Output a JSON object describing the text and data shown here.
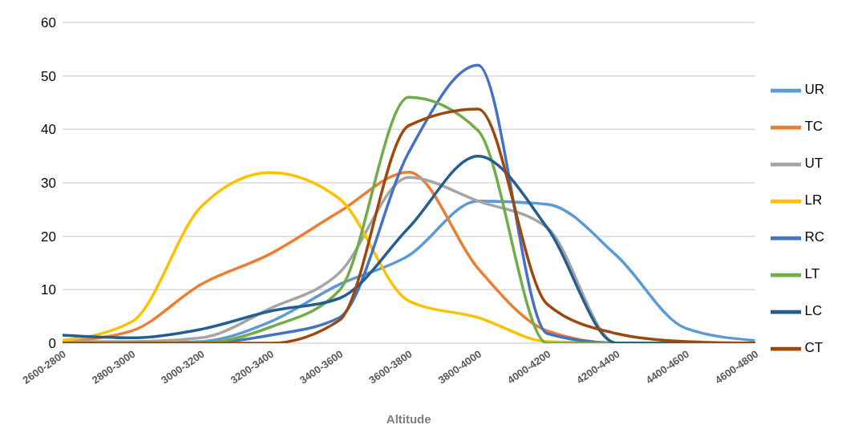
{
  "chart_data": {
    "type": "line",
    "xlabel": "Altitude",
    "categories": [
      "2600-2800",
      "2800-3000",
      "3000-3200",
      "3200-3400",
      "3400-3600",
      "3600-3800",
      "3800-4000",
      "4000-4200",
      "4200-4400",
      "4400-4600",
      "4600-4800"
    ],
    "series": [
      {
        "name": "UR",
        "color": "#5b9bd5",
        "values": [
          0,
          0,
          0.3,
          4,
          11,
          16.4,
          26.6,
          26,
          16.4,
          2.8,
          0.5
        ]
      },
      {
        "name": "TC",
        "color": "#ed7d31",
        "values": [
          0.3,
          2.3,
          11,
          16.7,
          24.6,
          32,
          14,
          2.3,
          0,
          0,
          0
        ]
      },
      {
        "name": "UT",
        "color": "#a5a5a5",
        "values": [
          0.3,
          0.3,
          1,
          6.5,
          13.2,
          31,
          26.6,
          21.6,
          0,
          0,
          0
        ]
      },
      {
        "name": "LR",
        "color": "#ffc000",
        "values": [
          0.5,
          4,
          25.5,
          31.9,
          27,
          7.9,
          4.8,
          0.3,
          0,
          null,
          null
        ]
      },
      {
        "name": "RC",
        "color": "#4472c4",
        "values": [
          0,
          0,
          0,
          1.5,
          4.8,
          35.7,
          52,
          1.8,
          0,
          0,
          0
        ]
      },
      {
        "name": "LT",
        "color": "#70ad47",
        "values": [
          0,
          0,
          0,
          3,
          9.9,
          46,
          39.8,
          0,
          0,
          0,
          0
        ]
      },
      {
        "name": "LC",
        "color": "#255e91",
        "values": [
          1.5,
          1,
          2.6,
          6,
          8.4,
          21.6,
          35,
          21.6,
          0,
          0,
          0
        ]
      },
      {
        "name": "CT",
        "color": "#9e480e",
        "values": [
          0,
          0,
          0,
          0,
          4.3,
          40.7,
          43.8,
          7.3,
          1.8,
          0.3,
          0
        ]
      }
    ],
    "ylim": [
      0,
      60
    ],
    "yticks": [
      0,
      10,
      20,
      30,
      40,
      50,
      60
    ],
    "grid": "y",
    "legend": "right",
    "marker": "none",
    "line_style": "solid"
  }
}
